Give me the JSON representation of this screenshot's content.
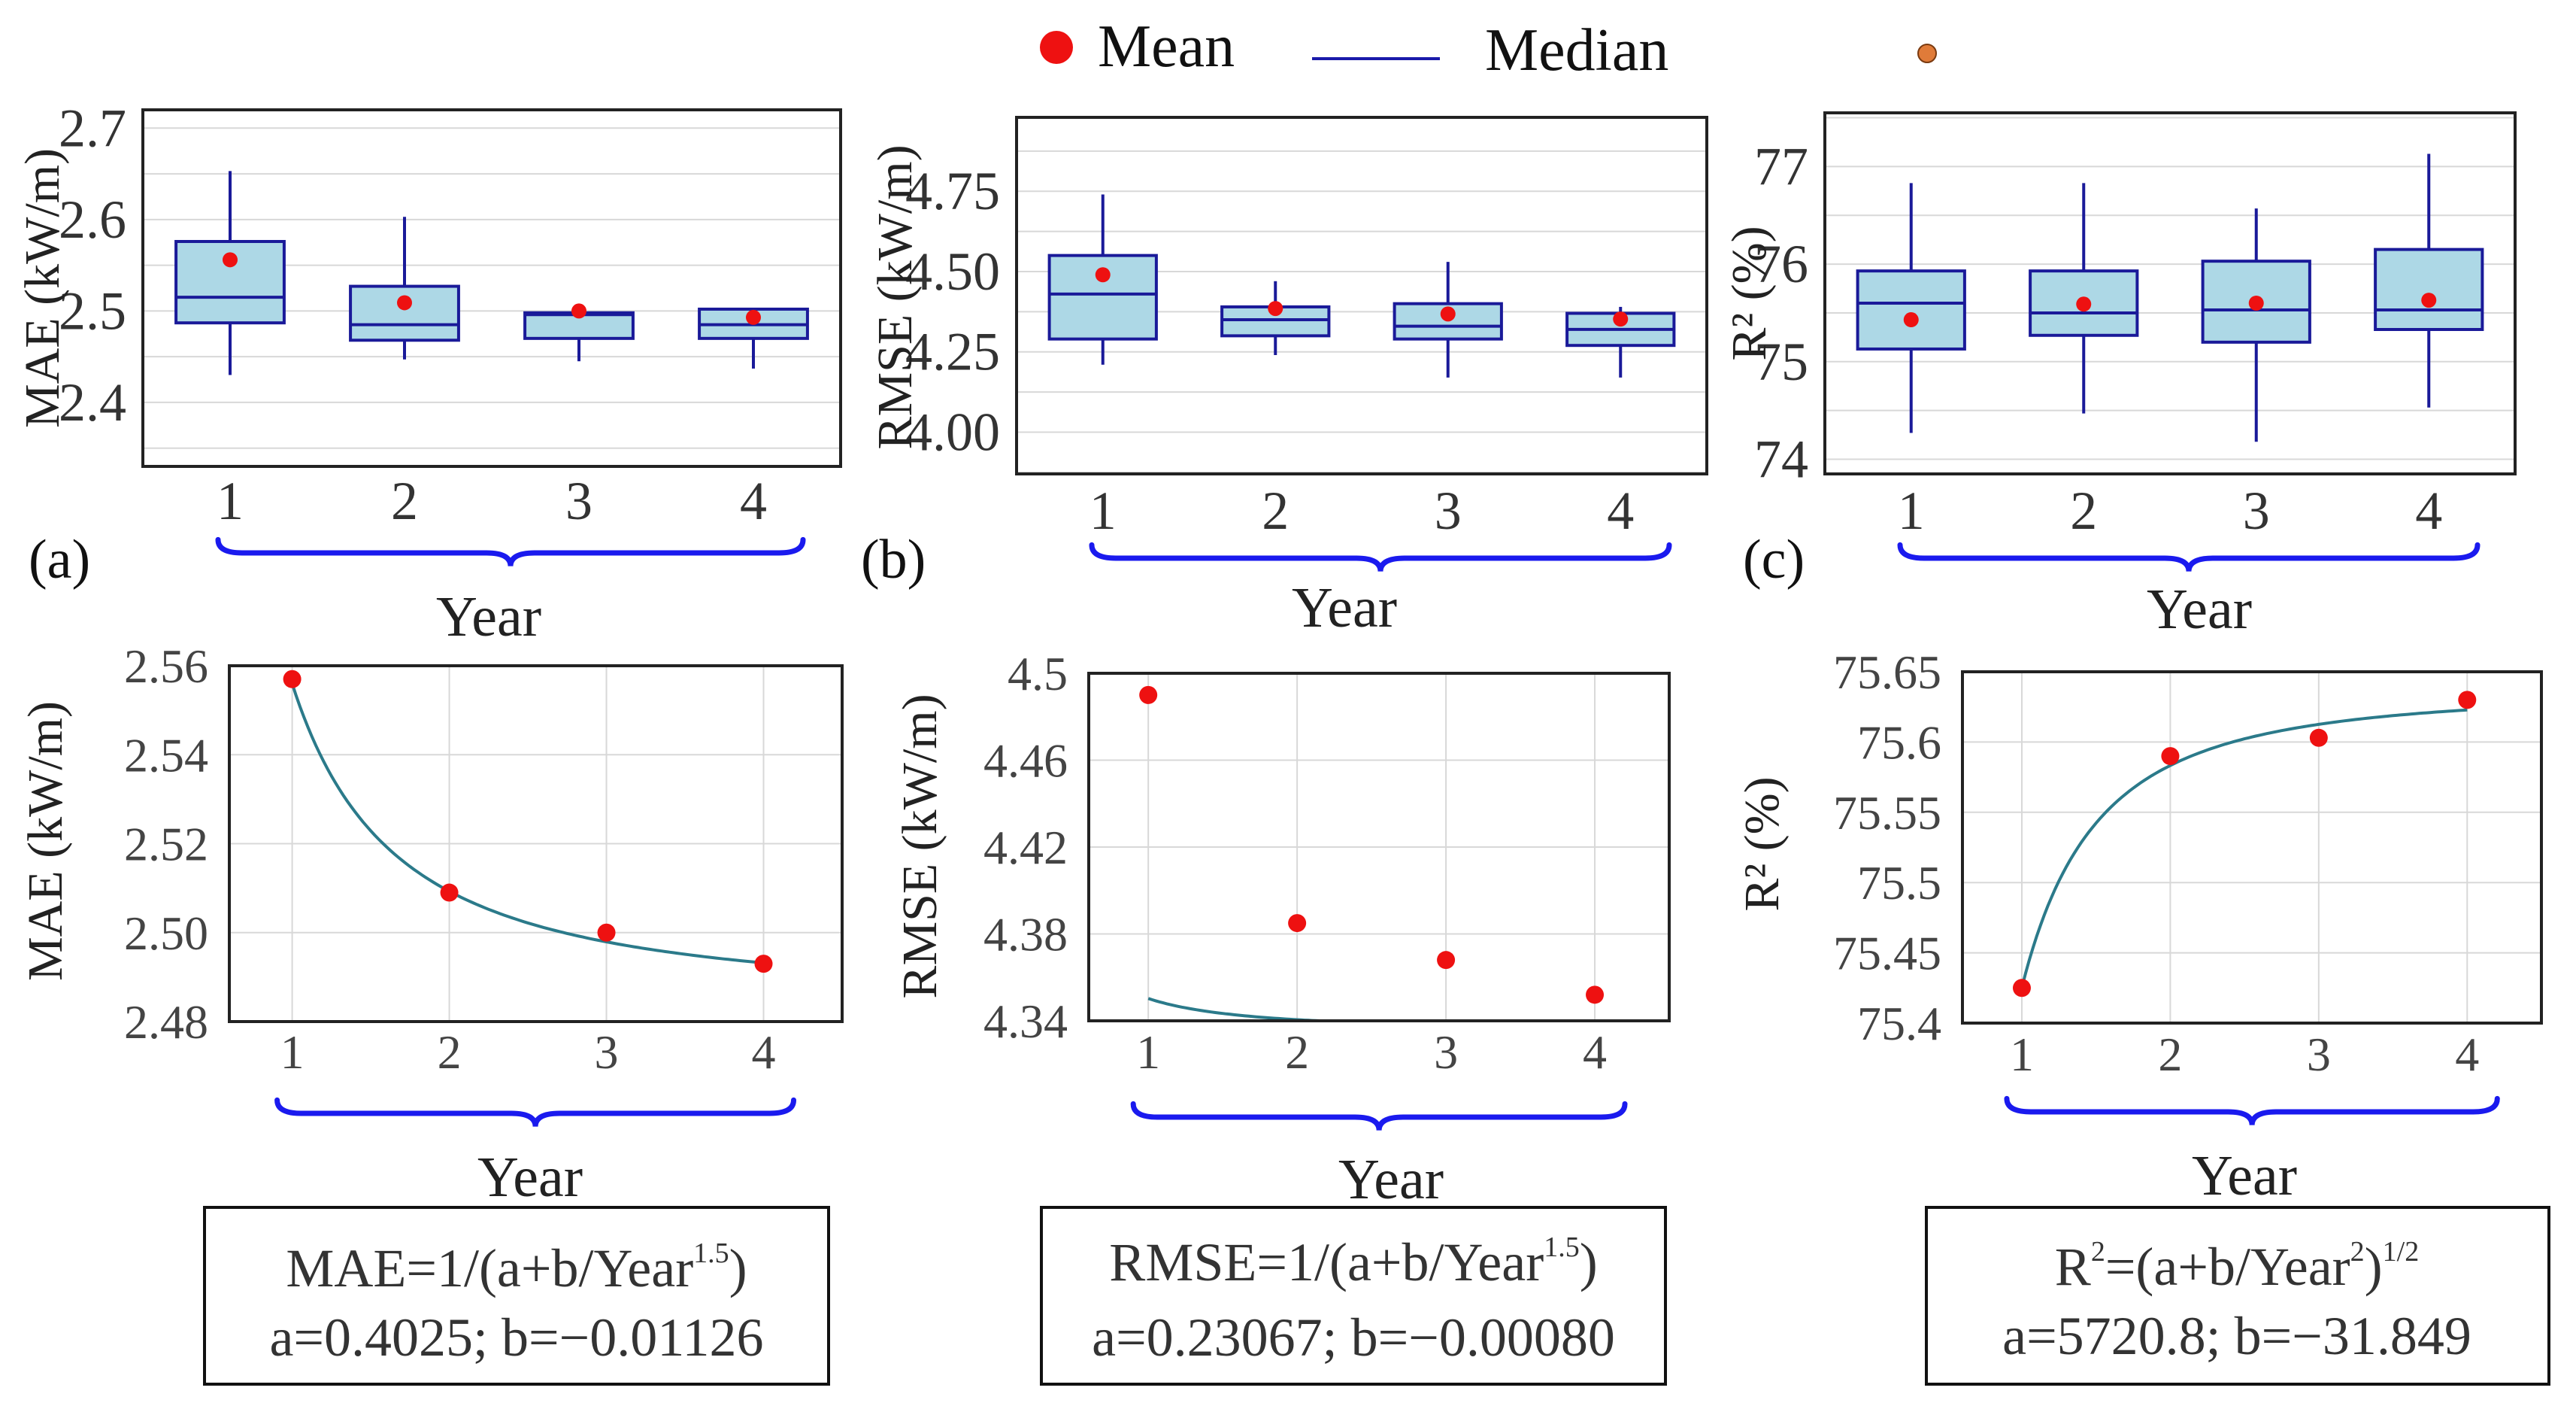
{
  "legend": {
    "mean_label": "Mean",
    "median_label": "Median",
    "mean_color": "#ee1111",
    "median_color": "#1a1aaa",
    "extra_marker_color": "#e07b39"
  },
  "colors": {
    "box_fill": "#add8e6",
    "box_stroke": "#1a1a99",
    "fit_line": "#2b7a8a",
    "brace": "#1a1aee",
    "grid": "#d8d8d8"
  },
  "chart_data": [
    {
      "id": "a",
      "type": "box",
      "panel_label": "(a)",
      "ylabel": "MAE (kW/m)",
      "xlabel": "Year",
      "categories": [
        "1",
        "2",
        "3",
        "4"
      ],
      "ylim": [
        2.33,
        2.72
      ],
      "yticks": [
        2.4,
        2.5,
        2.6,
        2.7
      ],
      "ytick_labels": [
        "2.4",
        "2.5",
        "2.6",
        "2.7"
      ],
      "boxes": [
        {
          "min": 2.43,
          "q1": 2.487,
          "median": 2.515,
          "q3": 2.576,
          "max": 2.653,
          "mean": 2.556
        },
        {
          "min": 2.447,
          "q1": 2.468,
          "median": 2.485,
          "q3": 2.527,
          "max": 2.603,
          "mean": 2.509
        },
        {
          "min": 2.445,
          "q1": 2.47,
          "median": 2.496,
          "q3": 2.498,
          "max": 2.498,
          "mean": 2.5
        },
        {
          "min": 2.437,
          "q1": 2.47,
          "median": 2.485,
          "q3": 2.502,
          "max": 2.502,
          "mean": 2.493
        }
      ]
    },
    {
      "id": "b",
      "type": "box",
      "panel_label": "(b)",
      "ylabel": "RMSE (kW/m)",
      "xlabel": "Year",
      "categories": [
        "1",
        "2",
        "3",
        "4"
      ],
      "ylim": [
        3.87,
        4.98
      ],
      "yticks": [
        4.0,
        4.25,
        4.5,
        4.75
      ],
      "ytick_labels": [
        "4.00",
        "4.25",
        "4.50",
        "4.75"
      ],
      "boxes": [
        {
          "min": 4.21,
          "q1": 4.29,
          "median": 4.43,
          "q3": 4.55,
          "max": 4.74,
          "mean": 4.49
        },
        {
          "min": 4.24,
          "q1": 4.3,
          "median": 4.35,
          "q3": 4.39,
          "max": 4.47,
          "mean": 4.385
        },
        {
          "min": 4.17,
          "q1": 4.29,
          "median": 4.33,
          "q3": 4.4,
          "max": 4.53,
          "mean": 4.368
        },
        {
          "min": 4.17,
          "q1": 4.27,
          "median": 4.32,
          "q3": 4.37,
          "max": 4.39,
          "mean": 4.352
        }
      ]
    },
    {
      "id": "c",
      "type": "box",
      "panel_label": "(c)",
      "ylabel": "R² (%)",
      "xlabel": "Year",
      "categories": [
        "1",
        "2",
        "3",
        "4"
      ],
      "ylim": [
        73.85,
        77.55
      ],
      "yticks": [
        74,
        75,
        76,
        77
      ],
      "ytick_labels": [
        "74",
        "75",
        "76",
        "77"
      ],
      "boxes": [
        {
          "min": 74.27,
          "q1": 75.13,
          "median": 75.6,
          "q3": 75.93,
          "max": 76.83,
          "mean": 75.43
        },
        {
          "min": 74.47,
          "q1": 75.27,
          "median": 75.5,
          "q3": 75.93,
          "max": 76.83,
          "mean": 75.59
        },
        {
          "min": 74.18,
          "q1": 75.2,
          "median": 75.53,
          "q3": 76.03,
          "max": 76.57,
          "mean": 75.6
        },
        {
          "min": 74.53,
          "q1": 75.33,
          "median": 75.53,
          "q3": 76.15,
          "max": 77.13,
          "mean": 75.63
        }
      ]
    },
    {
      "id": "d",
      "type": "scatter_fit",
      "ylabel": "MAE (kW/m)",
      "xlabel": "Year",
      "x": [
        1,
        2,
        3,
        4
      ],
      "y": [
        2.557,
        2.509,
        2.5,
        2.493
      ],
      "xlim": [
        0.6,
        4.5
      ],
      "ylim": [
        2.48,
        2.56
      ],
      "yticks": [
        2.48,
        2.5,
        2.52,
        2.54,
        2.56
      ],
      "ytick_labels": [
        "2.48",
        "2.50",
        "2.52",
        "2.54",
        "2.56"
      ],
      "fit": {
        "form": "inv",
        "a": 0.4025,
        "b": -0.01126,
        "p": 1.5
      },
      "equation": {
        "lhs": "MAE=1/(a+b/Year",
        "sup1": "1.5",
        "tail": ")",
        "sup2": "",
        "params": "a=0.4025; b=−0.01126"
      }
    },
    {
      "id": "e",
      "type": "scatter_fit",
      "ylabel": "RMSE (kW/m)",
      "xlabel": "Year",
      "x": [
        1,
        2,
        3,
        4
      ],
      "y": [
        4.49,
        4.385,
        4.368,
        4.352
      ],
      "xlim": [
        0.6,
        4.5
      ],
      "ylim": [
        4.34,
        4.5
      ],
      "yticks": [
        4.34,
        4.38,
        4.42,
        4.46,
        4.5
      ],
      "ytick_labels": [
        "4.34",
        "4.38",
        "4.42",
        "4.46",
        "4.5"
      ],
      "fit": {
        "form": "inv",
        "a": 0.23067,
        "b": -0.0008,
        "p": 1.5
      },
      "equation": {
        "lhs": "RMSE=1/(a+b/Year",
        "sup1": "1.5",
        "tail": ")",
        "sup2": "",
        "params": "a=0.23067; b=−0.00080"
      }
    },
    {
      "id": "f",
      "type": "scatter_fit",
      "ylabel": "R² (%)",
      "xlabel": "Year",
      "x": [
        1,
        2,
        3,
        4
      ],
      "y": [
        75.425,
        75.59,
        75.603,
        75.63
      ],
      "xlim": [
        0.6,
        4.5
      ],
      "ylim": [
        75.4,
        75.65
      ],
      "yticks": [
        75.4,
        75.45,
        75.5,
        75.55,
        75.6,
        75.65
      ],
      "ytick_labels": [
        "75.4",
        "75.45",
        "75.5",
        "75.55",
        "75.6",
        "75.65"
      ],
      "fit": {
        "form": "sqrt",
        "a": 5720.8,
        "b": -31.849,
        "p": 2
      },
      "equation": {
        "lhs": "R",
        "sup0": "2",
        "mid": "=(a+b/Year",
        "sup1": "2",
        "tail": ")",
        "sup2": "1/2",
        "params": "a=5720.8; b=−31.849"
      }
    }
  ]
}
